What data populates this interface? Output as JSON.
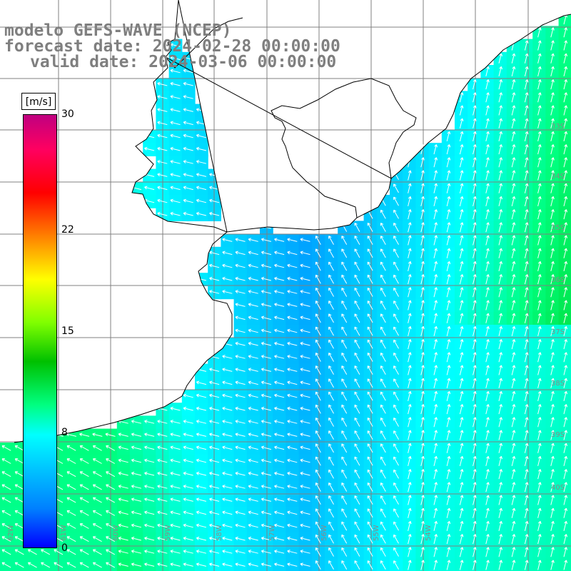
{
  "header": {
    "title": "modelo GEFS-WAVE (NCEP)",
    "forecast": "forecast date: 2024-02-28 00:00:00",
    "valid": "valid date: 2024-03-06 00:00:00"
  },
  "legend": {
    "units": "[m/s]",
    "ticks": [
      {
        "label": "30",
        "value": 30
      },
      {
        "label": "22",
        "value": 22
      },
      {
        "label": "15",
        "value": 15
      },
      {
        "label": "8",
        "value": 8
      },
      {
        "label": "0",
        "value": 0
      }
    ],
    "min": 0,
    "max": 30,
    "colors": [
      "#0000ff",
      "#0080ff",
      "#00ffff",
      "#00ff80",
      "#00c000",
      "#80ff00",
      "#ffff00",
      "#ff8000",
      "#ff0000",
      "#c00080"
    ]
  },
  "map": {
    "field": "wind",
    "land_color": "#ffffff",
    "coastline_color": "#000000",
    "grid_color": "#808080",
    "arrow_color": "#ffffff",
    "lat_labels": [
      "33S",
      "34S",
      "35S",
      "36S",
      "37S",
      "38S",
      "39S",
      "40S"
    ],
    "lon_labels": [
      "62W",
      "61W",
      "60W",
      "59W",
      "58W",
      "57W",
      "56W",
      "55W",
      "54W"
    ]
  }
}
